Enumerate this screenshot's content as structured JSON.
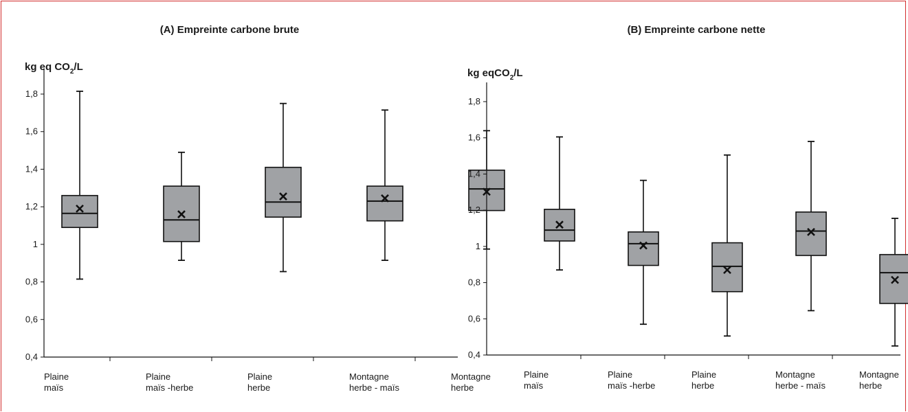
{
  "colors": {
    "border": "#d22b2b",
    "box_fill": "#a0a2a5",
    "line": "#111111"
  },
  "chart_data": [
    {
      "type": "box",
      "title": "(A) Empreinte carbone brute",
      "ylabel_main": "kg eq CO",
      "ylabel_sub": "2",
      "ylabel_tail": "/L",
      "ylim": [
        0.4,
        1.9
      ],
      "yticks": [
        "0,4",
        "0,6",
        "0,8",
        "1",
        "1,2",
        "1,4",
        "1,6",
        "1,8"
      ],
      "categories": [
        [
          "Plaine",
          "maïs"
        ],
        [
          "Plaine",
          "maïs -herbe"
        ],
        [
          "Plaine",
          "herbe"
        ],
        [
          "Montagne",
          "herbe - maïs"
        ],
        [
          "Montagne",
          "herbe"
        ]
      ],
      "boxes": [
        {
          "min": 0.815,
          "q1": 1.09,
          "median": 1.165,
          "q3": 1.26,
          "max": 1.815,
          "mean": 1.19
        },
        {
          "min": 0.915,
          "q1": 1.015,
          "median": 1.13,
          "q3": 1.31,
          "max": 1.49,
          "mean": 1.16
        },
        {
          "min": 0.855,
          "q1": 1.145,
          "median": 1.225,
          "q3": 1.41,
          "max": 1.75,
          "mean": 1.255
        },
        {
          "min": 0.915,
          "q1": 1.125,
          "median": 1.23,
          "q3": 1.31,
          "max": 1.715,
          "mean": 1.245
        },
        {
          "min": 0.975,
          "q1": 1.18,
          "median": 1.295,
          "q3": 1.395,
          "max": 1.605,
          "mean": 1.28
        }
      ]
    },
    {
      "type": "box",
      "title": "(B) Empreinte carbone nette",
      "ylabel_main": "kg eqCO",
      "ylabel_sub": "2",
      "ylabel_tail": "/L",
      "ylim": [
        0.4,
        1.9
      ],
      "yticks": [
        "0,4",
        "0,6",
        "0,8",
        "1",
        "1,2",
        "1,4",
        "1,6",
        "1,8"
      ],
      "categories": [
        [
          "Plaine",
          "maïs"
        ],
        [
          "Plaine",
          "maïs -herbe"
        ],
        [
          "Plaine",
          "herbe"
        ],
        [
          "Montagne",
          "herbe - maïs"
        ],
        [
          "Montagne",
          "herbe"
        ]
      ],
      "boxes": [
        {
          "min": 0.87,
          "q1": 1.03,
          "median": 1.09,
          "q3": 1.205,
          "max": 1.605,
          "mean": 1.12
        },
        {
          "min": 0.57,
          "q1": 0.895,
          "median": 1.015,
          "q3": 1.08,
          "max": 1.365,
          "mean": 1.005
        },
        {
          "min": 0.505,
          "q1": 0.75,
          "median": 0.89,
          "q3": 1.02,
          "max": 1.505,
          "mean": 0.87
        },
        {
          "min": 0.645,
          "q1": 0.95,
          "median": 1.085,
          "q3": 1.19,
          "max": 1.58,
          "mean": 1.08
        },
        {
          "min": 0.45,
          "q1": 0.685,
          "median": 0.855,
          "q3": 0.955,
          "max": 1.155,
          "mean": 0.815
        }
      ]
    }
  ]
}
